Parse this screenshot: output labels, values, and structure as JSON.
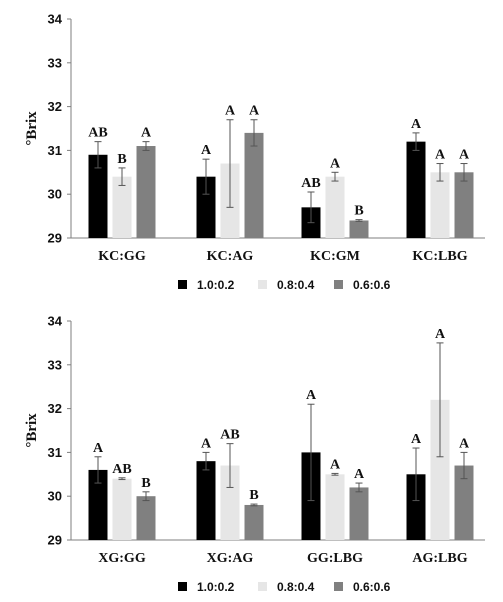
{
  "colors": {
    "s1": "#000000",
    "s2": "#e6e6e6",
    "s3": "#808080",
    "axis": "#7f7f7f",
    "err": "#555555"
  },
  "chart_data": [
    {
      "type": "bar",
      "title": "",
      "xlabel": "",
      "ylabel": "°Brix",
      "ylim": [
        29,
        34
      ],
      "yticks": [
        "29",
        "30",
        "31",
        "32",
        "33",
        "34"
      ],
      "categories": [
        "KC:GG",
        "KC:AG",
        "KC:GM",
        "KC:LBG"
      ],
      "legend": "bottom",
      "series": [
        {
          "name": "1.0:0.2",
          "values": [
            30.9,
            30.4,
            29.7,
            31.2
          ],
          "errors": [
            0.3,
            0.4,
            0.35,
            0.2
          ],
          "letters": [
            "AB",
            "A",
            "AB",
            "A"
          ]
        },
        {
          "name": "0.8:0.4",
          "values": [
            30.4,
            30.7,
            30.4,
            30.5
          ],
          "errors": [
            0.2,
            1.0,
            0.1,
            0.2
          ],
          "letters": [
            "B",
            "A",
            "A",
            "A"
          ]
        },
        {
          "name": "0.6:0.6",
          "values": [
            31.1,
            31.4,
            29.4,
            30.5
          ],
          "errors": [
            0.1,
            0.3,
            0.02,
            0.2
          ],
          "letters": [
            "A",
            "A",
            "B",
            "A"
          ]
        }
      ]
    },
    {
      "type": "bar",
      "title": "",
      "xlabel": "",
      "ylabel": "°Brix",
      "ylim": [
        29,
        34
      ],
      "yticks": [
        "29",
        "30",
        "31",
        "32",
        "33",
        "34"
      ],
      "categories": [
        "XG:GG",
        "XG:AG",
        "GG:LBG",
        "AG:LBG"
      ],
      "legend": "bottom",
      "series": [
        {
          "name": "1.0:0.2",
          "values": [
            30.6,
            30.8,
            31.0,
            30.5
          ],
          "errors": [
            0.3,
            0.2,
            1.1,
            0.6
          ],
          "letters": [
            "A",
            "A",
            "A",
            "A"
          ]
        },
        {
          "name": "0.8:0.4",
          "values": [
            30.4,
            30.7,
            30.5,
            32.2
          ],
          "errors": [
            0.02,
            0.5,
            0.02,
            1.3
          ],
          "letters": [
            "AB",
            "AB",
            "A",
            "A"
          ]
        },
        {
          "name": "0.6:0.6",
          "values": [
            30.0,
            29.8,
            30.2,
            30.7
          ],
          "errors": [
            0.1,
            0.02,
            0.1,
            0.3
          ],
          "letters": [
            "B",
            "B",
            "A",
            "A"
          ]
        }
      ]
    }
  ]
}
